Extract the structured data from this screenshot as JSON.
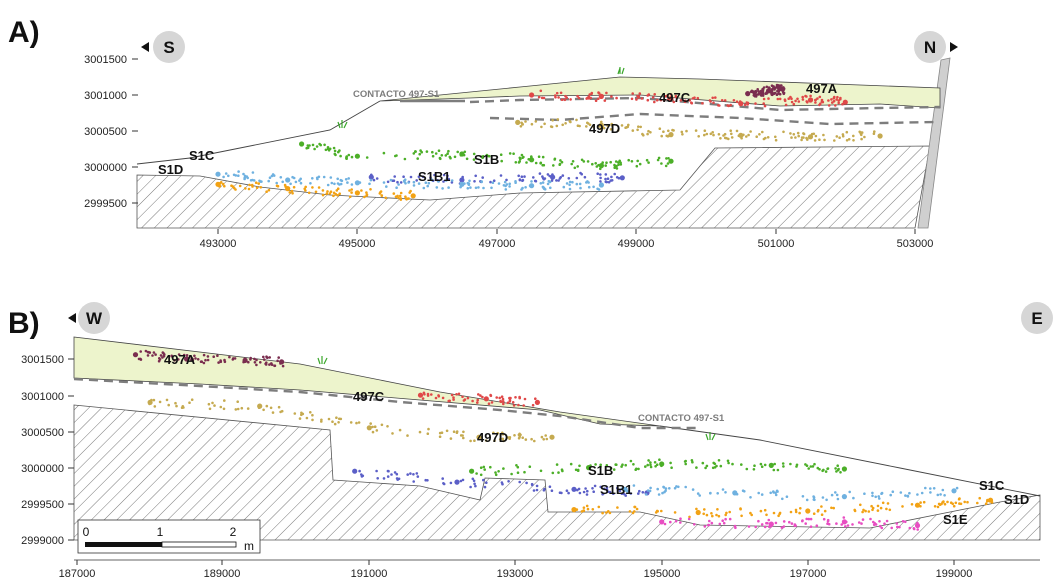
{
  "chart_data": [
    {
      "type": "scatter",
      "panel": "A)",
      "directions": {
        "left": "S",
        "right": "N"
      },
      "xlim": [
        492000,
        503000
      ],
      "ylim": [
        2999300,
        3001700
      ],
      "xticks": [
        "493000",
        "495000",
        "497000",
        "499000",
        "501000",
        "503000"
      ],
      "yticks": [
        "3001500",
        "3001000",
        "3000500",
        "3000000",
        "2999500"
      ],
      "contact_label": "CONTACTO 497-S1",
      "unit_labels": [
        "497A",
        "497C",
        "497D",
        "S1B",
        "S1B1",
        "S1C",
        "S1D"
      ],
      "series": [
        {
          "name": "497A",
          "color": "#7a2d4f",
          "points": [
            [
              500600,
              3001020
            ],
            [
              500900,
              3001060
            ],
            [
              501100,
              3001080
            ],
            [
              500800,
              3001040
            ]
          ]
        },
        {
          "name": "497C",
          "color": "#e04848",
          "points": [
            [
              497500,
              3001000
            ],
            [
              498500,
              3000980
            ],
            [
              499500,
              3000950
            ],
            [
              500500,
              3000880
            ],
            [
              501500,
              3000930
            ],
            [
              502000,
              3000900
            ]
          ]
        },
        {
          "name": "497D",
          "color": "#c5aa50",
          "points": [
            [
              497300,
              3000620
            ],
            [
              498500,
              3000580
            ],
            [
              499500,
              3000450
            ],
            [
              500500,
              3000440
            ],
            [
              501500,
              3000420
            ],
            [
              502500,
              3000430
            ]
          ]
        },
        {
          "name": "S1B",
          "color": "#4caf28",
          "points": [
            [
              494200,
              3000320
            ],
            [
              495000,
              3000150
            ],
            [
              496500,
              3000180
            ],
            [
              497500,
              3000100
            ],
            [
              498500,
              3000020
            ],
            [
              499500,
              3000080
            ]
          ]
        },
        {
          "name": "S1B1",
          "color": "#5b5fc7",
          "points": [
            [
              495200,
              2999860
            ],
            [
              496500,
              2999820
            ],
            [
              497800,
              2999860
            ],
            [
              498800,
              2999850
            ]
          ]
        },
        {
          "name": "S1C",
          "color": "#6fb1e0",
          "points": [
            [
              493000,
              2999900
            ],
            [
              494000,
              2999820
            ],
            [
              495000,
              2999780
            ],
            [
              496500,
              2999760
            ],
            [
              497500,
              2999740
            ],
            [
              498500,
              2999750
            ]
          ]
        },
        {
          "name": "S1D",
          "color": "#f2a214",
          "points": [
            [
              493000,
              2999760
            ],
            [
              494000,
              2999700
            ],
            [
              495000,
              2999640
            ],
            [
              495800,
              2999600
            ]
          ]
        }
      ]
    },
    {
      "type": "scatter",
      "panel": "B)",
      "directions": {
        "left": "W",
        "right": "E"
      },
      "xlim": [
        187000,
        200000
      ],
      "ylim": [
        2998800,
        3002000
      ],
      "xticks": [
        "187000",
        "189000",
        "191000",
        "193000",
        "195000",
        "197000",
        "199000"
      ],
      "yticks": [
        "3001500",
        "3001000",
        "3000500",
        "3000000",
        "2999500",
        "2999000"
      ],
      "contact_label": "CONTACTO 497-S1",
      "unit_labels": [
        "497A",
        "497C",
        "497D",
        "S1B",
        "S1B1",
        "S1C",
        "S1D",
        "S1E"
      ],
      "scale_bar": {
        "ticks": [
          "0",
          "1",
          "2"
        ],
        "unit": "m"
      },
      "series": [
        {
          "name": "497A",
          "color": "#7a2d4f",
          "points": [
            [
              187800,
              3001560
            ],
            [
              188500,
              3001500
            ],
            [
              189300,
              3001480
            ],
            [
              189800,
              3001460
            ]
          ]
        },
        {
          "name": "497C",
          "color": "#e04848",
          "points": [
            [
              191700,
              3001000
            ],
            [
              192600,
              3000950
            ],
            [
              193300,
              3000900
            ]
          ]
        },
        {
          "name": "497D",
          "color": "#c5aa50",
          "points": [
            [
              188000,
              3000900
            ],
            [
              189500,
              3000850
            ],
            [
              191000,
              3000550
            ],
            [
              192500,
              3000420
            ],
            [
              193500,
              3000420
            ]
          ]
        },
        {
          "name": "S1B",
          "color": "#4caf28",
          "points": [
            [
              192400,
              2999950
            ],
            [
              194000,
              3000000
            ],
            [
              195000,
              3000050
            ],
            [
              196500,
              3000030
            ],
            [
              197500,
              2999980
            ]
          ]
        },
        {
          "name": "S1B1",
          "color": "#5b5fc7",
          "points": [
            [
              190800,
              2999950
            ],
            [
              192200,
              2999800
            ],
            [
              193800,
              2999700
            ],
            [
              194800,
              2999650
            ]
          ]
        },
        {
          "name": "S1C",
          "color": "#6fb1e0",
          "points": [
            [
              194500,
              2999700
            ],
            [
              196000,
              2999650
            ],
            [
              197500,
              2999600
            ],
            [
              199000,
              2999680
            ]
          ]
        },
        {
          "name": "S1D",
          "color": "#f2a214",
          "points": [
            [
              193800,
              2999420
            ],
            [
              195500,
              2999380
            ],
            [
              197000,
              2999400
            ],
            [
              198500,
              2999480
            ],
            [
              199500,
              2999550
            ]
          ]
        },
        {
          "name": "S1E",
          "color": "#e84ec2",
          "points": [
            [
              195000,
              2999250
            ],
            [
              196500,
              2999220
            ],
            [
              197500,
              2999250
            ],
            [
              198500,
              2999200
            ]
          ]
        }
      ]
    }
  ]
}
